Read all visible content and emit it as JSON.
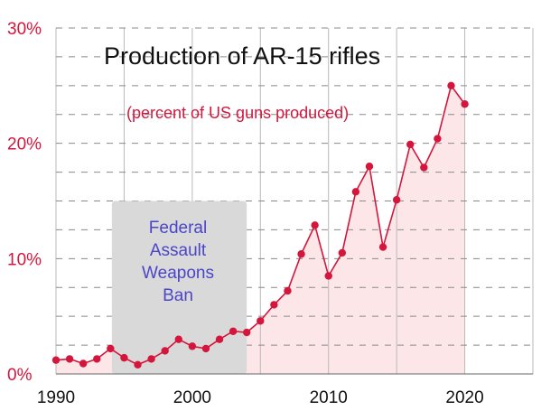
{
  "colors": {
    "accent": "#d4163c",
    "area_fill": "#fde6e8",
    "grid": "#8a8a8a",
    "ban_box": "#d9d9d9",
    "ban_text": "#4b45c8"
  },
  "chart_data": {
    "type": "line",
    "title": "Production of AR-15 rifles",
    "subtitle": "(percent of US guns produced)",
    "xlabel": "",
    "ylabel": "",
    "xlim": [
      1990,
      2025
    ],
    "ylim": [
      0,
      30
    ],
    "x_ticks": [
      1990,
      2000,
      2010,
      2020
    ],
    "x_tick_labels": [
      "1990",
      "2000",
      "2010",
      "2020"
    ],
    "y_ticks": [
      0,
      10,
      20,
      30
    ],
    "y_tick_labels": [
      "0%",
      "10%",
      "20%",
      "30%"
    ],
    "grid": "horizontal dashed at 2.5% steps, vertical solid every 5 years",
    "area_fill": true,
    "x": [
      1990,
      1991,
      1992,
      1993,
      1994,
      1995,
      1996,
      1997,
      1998,
      1999,
      2000,
      2001,
      2002,
      2003,
      2004,
      2005,
      2006,
      2007,
      2008,
      2009,
      2010,
      2011,
      2012,
      2013,
      2014,
      2015,
      2016,
      2017,
      2018,
      2019,
      2020
    ],
    "values": [
      1.2,
      1.3,
      0.9,
      1.3,
      2.2,
      1.4,
      0.8,
      1.3,
      2.0,
      3.0,
      2.4,
      2.2,
      3.0,
      3.7,
      3.6,
      4.6,
      6.0,
      7.2,
      10.4,
      12.9,
      8.5,
      10.5,
      15.8,
      18.0,
      11.0,
      15.1,
      19.9,
      17.9,
      20.4,
      25.0,
      23.4
    ],
    "annotations": [
      {
        "label_lines": [
          "Federal",
          "Assault",
          "Weapons",
          "Ban"
        ],
        "x_start": 1994.1,
        "x_end": 2004.0,
        "y_top": 15.0
      }
    ]
  }
}
